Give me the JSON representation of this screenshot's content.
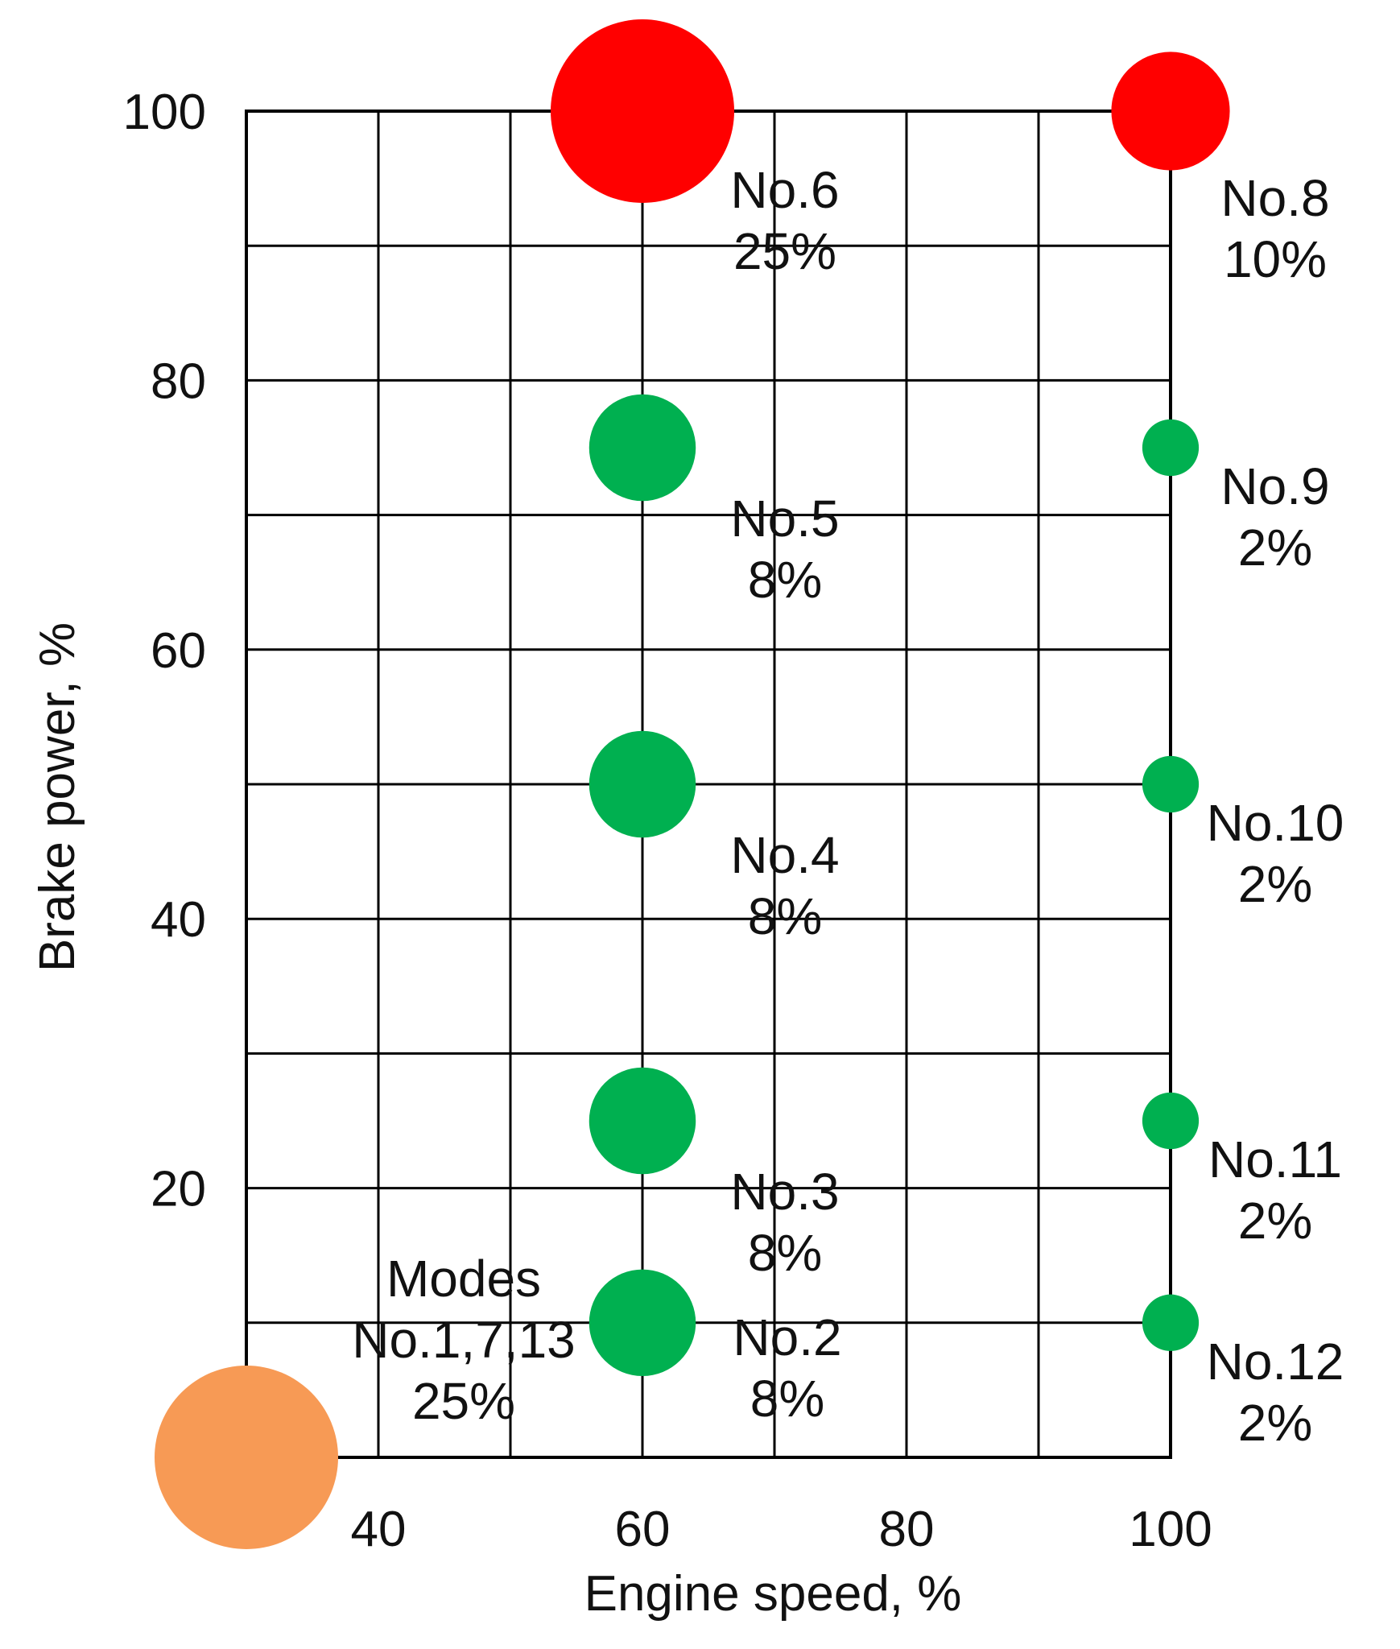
{
  "chart_data": {
    "type": "scatter",
    "xlabel": "Engine speed, %",
    "ylabel": "Brake power, %",
    "xlim": [
      30,
      100
    ],
    "ylim": [
      0,
      100
    ],
    "xticks": [
      "40",
      "60",
      "80",
      "100"
    ],
    "yticks": [
      "20",
      "40",
      "60",
      "80",
      "100"
    ],
    "grid": true,
    "colors": {
      "high_weight": "#ff0000",
      "mid_weight": "#00b050",
      "idle": "#f79a55"
    },
    "points": [
      {
        "x": 30,
        "y": 0,
        "weight": 25,
        "color": "#f79a55",
        "label_lines": [
          "Modes",
          "No.1,7,13",
          "25%"
        ]
      },
      {
        "x": 60,
        "y": 10,
        "weight": 8,
        "color": "#00b050",
        "label_lines": [
          "No.2",
          "8%"
        ]
      },
      {
        "x": 60,
        "y": 25,
        "weight": 8,
        "color": "#00b050",
        "label_lines": [
          "No.3",
          "8%"
        ]
      },
      {
        "x": 60,
        "y": 50,
        "weight": 8,
        "color": "#00b050",
        "label_lines": [
          "No.4",
          "8%"
        ]
      },
      {
        "x": 60,
        "y": 75,
        "weight": 8,
        "color": "#00b050",
        "label_lines": [
          "No.5",
          "8%"
        ]
      },
      {
        "x": 60,
        "y": 100,
        "weight": 25,
        "color": "#ff0000",
        "label_lines": [
          "No.6",
          "25%"
        ]
      },
      {
        "x": 100,
        "y": 100,
        "weight": 10,
        "color": "#ff0000",
        "label_lines": [
          "No.8",
          "10%"
        ]
      },
      {
        "x": 100,
        "y": 75,
        "weight": 2,
        "color": "#00b050",
        "label_lines": [
          "No.9",
          "2%"
        ]
      },
      {
        "x": 100,
        "y": 50,
        "weight": 2,
        "color": "#00b050",
        "label_lines": [
          "No.10",
          "2%"
        ]
      },
      {
        "x": 100,
        "y": 25,
        "weight": 2,
        "color": "#00b050",
        "label_lines": [
          "No.11",
          "2%"
        ]
      },
      {
        "x": 100,
        "y": 10,
        "weight": 2,
        "color": "#00b050",
        "label_lines": [
          "No.12",
          "2%"
        ]
      }
    ]
  }
}
